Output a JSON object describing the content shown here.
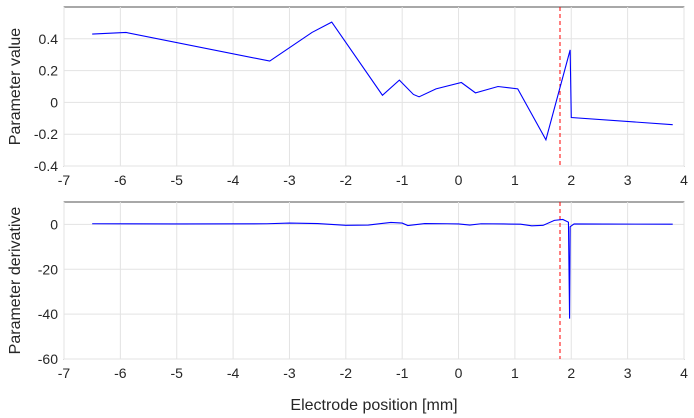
{
  "chart_data": [
    {
      "type": "line",
      "title": "",
      "xlabel": "",
      "ylabel": "Parameter value",
      "xlim": [
        -7,
        4
      ],
      "ylim": [
        -0.4,
        0.6
      ],
      "xticks": [
        -7,
        -6,
        -5,
        -4,
        -3,
        -2,
        -1,
        0,
        1,
        2,
        3,
        4
      ],
      "yticks": [
        -0.4,
        -0.2,
        0,
        0.2,
        0.4
      ],
      "ytick_labels": [
        "-0.4",
        "-0.2",
        "0",
        "0.2",
        "0.4"
      ],
      "grid": true,
      "series": [
        {
          "color": "#0000ff",
          "points": [
            [
              -6.5,
              0.43
            ],
            [
              -5.9,
              0.44
            ],
            [
              -3.35,
              0.26
            ],
            [
              -2.6,
              0.44
            ],
            [
              -2.25,
              0.505
            ],
            [
              -1.35,
              0.045
            ],
            [
              -1.05,
              0.14
            ],
            [
              -0.8,
              0.05
            ],
            [
              -0.7,
              0.035
            ],
            [
              -0.4,
              0.085
            ],
            [
              0.05,
              0.125
            ],
            [
              0.3,
              0.06
            ],
            [
              0.7,
              0.1
            ],
            [
              1.05,
              0.085
            ],
            [
              1.55,
              -0.235
            ],
            [
              1.98,
              0.33
            ],
            [
              2.0,
              -0.095
            ],
            [
              3.8,
              -0.14
            ]
          ]
        }
      ],
      "vline": {
        "x": 1.8,
        "color": "#ff0000",
        "style": "dashed"
      }
    },
    {
      "type": "line",
      "title": "",
      "xlabel": "Electrode position [mm]",
      "ylabel": "Parameter derivative",
      "xlim": [
        -7,
        4
      ],
      "ylim": [
        -60,
        10
      ],
      "xticks": [
        -7,
        -6,
        -5,
        -4,
        -3,
        -2,
        -1,
        0,
        1,
        2,
        3,
        4
      ],
      "yticks": [
        -60,
        -40,
        -20,
        0
      ],
      "ytick_labels": [
        "-60",
        "-40",
        "-20",
        "0"
      ],
      "grid": true,
      "series": [
        {
          "color": "#0000ff",
          "points": [
            [
              -6.5,
              0.3
            ],
            [
              -5.0,
              0.2
            ],
            [
              -3.4,
              0.3
            ],
            [
              -3.0,
              0.6
            ],
            [
              -2.5,
              0.4
            ],
            [
              -2.0,
              -0.4
            ],
            [
              -1.6,
              -0.3
            ],
            [
              -1.2,
              0.9
            ],
            [
              -1.0,
              0.6
            ],
            [
              -0.9,
              -0.5
            ],
            [
              -0.6,
              0.4
            ],
            [
              -0.2,
              0.3
            ],
            [
              0.0,
              0.2
            ],
            [
              0.2,
              -0.3
            ],
            [
              0.4,
              0.3
            ],
            [
              0.8,
              0.2
            ],
            [
              1.1,
              0.1
            ],
            [
              1.3,
              -0.6
            ],
            [
              1.5,
              -0.4
            ],
            [
              1.7,
              1.8
            ],
            [
              1.85,
              2.2
            ],
            [
              1.95,
              1.0
            ],
            [
              1.97,
              -42.0
            ],
            [
              1.98,
              -1.0
            ],
            [
              2.05,
              0.2
            ],
            [
              3.8,
              0.1
            ]
          ]
        }
      ],
      "vline": {
        "x": 1.8,
        "color": "#ff0000",
        "style": "dashed"
      }
    }
  ]
}
